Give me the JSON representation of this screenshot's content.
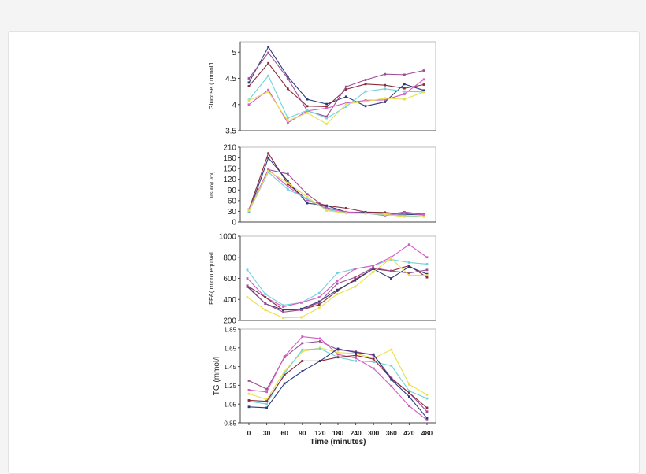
{
  "chart_data": [
    {
      "type": "line",
      "ylabel": "Glucose ( mmol/l",
      "yticks": [
        "5",
        "4.5",
        "4",
        "3.5"
      ],
      "ylim": [
        3.5,
        5.2
      ],
      "x": [
        1,
        2,
        3,
        4,
        5,
        6,
        7,
        8,
        9,
        10
      ],
      "grid": false,
      "series": [
        {
          "color": "#2b3a7a",
          "values": [
            4.42,
            5.1,
            4.53,
            4.1,
            4.01,
            4.15,
            3.97,
            4.05,
            4.39,
            4.27
          ]
        },
        {
          "color": "#8b2c3c",
          "values": [
            4.35,
            4.79,
            4.3,
            3.97,
            3.96,
            4.29,
            4.39,
            4.37,
            4.31,
            4.38
          ]
        },
        {
          "color": "#9b4f96",
          "values": [
            4.5,
            4.99,
            4.5,
            3.88,
            3.77,
            4.34,
            4.47,
            4.58,
            4.57,
            4.65
          ]
        },
        {
          "color": "#d45bc4",
          "values": [
            4.0,
            4.28,
            3.65,
            3.88,
            3.93,
            4.03,
            4.08,
            4.09,
            4.2,
            4.48
          ]
        },
        {
          "color": "#6fd3dc",
          "values": [
            4.09,
            4.55,
            3.74,
            3.89,
            3.74,
            3.96,
            4.25,
            4.3,
            4.25,
            4.24
          ]
        },
        {
          "color": "#e8e04a",
          "values": [
            4.08,
            4.24,
            3.69,
            3.84,
            3.63,
            4.01,
            4.06,
            4.12,
            4.1,
            4.24
          ]
        }
      ]
    },
    {
      "type": "line",
      "ylabel": "Insulin(U/ml)",
      "yticks": [
        "210",
        "180",
        "150",
        "120",
        "90",
        "60",
        "30",
        "0"
      ],
      "ylim": [
        0,
        210
      ],
      "x": [
        1,
        2,
        3,
        4,
        5,
        6,
        7,
        8,
        9,
        10
      ],
      "grid": false,
      "series": [
        {
          "color": "#8b2c3c",
          "values": [
            35,
            193,
            107,
            62,
            46,
            39,
            28,
            27,
            22,
            22
          ]
        },
        {
          "color": "#2b3a7a",
          "values": [
            28,
            180,
            115,
            53,
            46,
            28,
            27,
            22,
            22,
            20
          ]
        },
        {
          "color": "#9b4f96",
          "values": [
            33,
            147,
            135,
            78,
            40,
            28,
            25,
            20,
            28,
            22
          ]
        },
        {
          "color": "#d45bc4",
          "values": [
            35,
            147,
            100,
            62,
            38,
            28,
            25,
            18,
            25,
            20
          ]
        },
        {
          "color": "#6fd3dc",
          "values": [
            30,
            140,
            92,
            65,
            35,
            25,
            24,
            20,
            18,
            15
          ]
        },
        {
          "color": "#e8e04a",
          "values": [
            32,
            143,
            110,
            70,
            32,
            25,
            24,
            22,
            15,
            15
          ]
        }
      ]
    },
    {
      "type": "line",
      "ylabel": "FFA( micro equival",
      "yticks": [
        "1000",
        "800",
        "600",
        "400",
        "200"
      ],
      "ylim": [
        200,
        1000
      ],
      "x": [
        0,
        30,
        60,
        90,
        120,
        180,
        240,
        300,
        360,
        420,
        480
      ],
      "grid": false,
      "series": [
        {
          "color": "#6fd3dc",
          "values": [
            680,
            450,
            345,
            370,
            460,
            650,
            690,
            720,
            780,
            750,
            735
          ]
        },
        {
          "color": "#d45bc4",
          "values": [
            600,
            420,
            330,
            370,
            420,
            575,
            690,
            720,
            800,
            920,
            800
          ]
        },
        {
          "color": "#8b2c3c",
          "values": [
            530,
            420,
            300,
            300,
            350,
            480,
            590,
            690,
            670,
            720,
            610
          ]
        },
        {
          "color": "#2b3a7a",
          "values": [
            520,
            360,
            300,
            310,
            380,
            490,
            580,
            690,
            600,
            710,
            640
          ]
        },
        {
          "color": "#9b4f96",
          "values": [
            530,
            360,
            280,
            300,
            370,
            550,
            610,
            700,
            670,
            650,
            680
          ]
        },
        {
          "color": "#e8e04a",
          "values": [
            420,
            300,
            225,
            230,
            320,
            450,
            520,
            660,
            790,
            630,
            630
          ]
        }
      ]
    },
    {
      "type": "line",
      "ylabel": "TG (mmol/l",
      "xlabel": "Time (minutes)",
      "yticks": [
        "1.85",
        "1.65",
        "1.45",
        "1.25",
        "1.05",
        "0.85"
      ],
      "xticks": [
        "0",
        "30",
        "60",
        "90",
        "120",
        "180",
        "240",
        "300",
        "360",
        "420",
        "480"
      ],
      "ylim": [
        0.85,
        1.85
      ],
      "x": [
        0,
        30,
        60,
        90,
        120,
        180,
        240,
        300,
        360,
        420,
        480
      ],
      "grid": false,
      "series": [
        {
          "color": "#9b4f96",
          "values": [
            1.3,
            1.21,
            1.55,
            1.7,
            1.72,
            1.63,
            1.61,
            1.57,
            1.33,
            1.17,
            0.97
          ]
        },
        {
          "color": "#d45bc4",
          "values": [
            1.2,
            1.18,
            1.56,
            1.77,
            1.75,
            1.58,
            1.54,
            1.43,
            1.24,
            1.03,
            0.88
          ]
        },
        {
          "color": "#e8e04a",
          "values": [
            1.16,
            1.1,
            1.4,
            1.61,
            1.65,
            1.6,
            1.59,
            1.54,
            1.63,
            1.26,
            1.15
          ]
        },
        {
          "color": "#6fd3dc",
          "values": [
            1.08,
            1.05,
            1.38,
            1.63,
            1.64,
            1.55,
            1.51,
            1.5,
            1.46,
            1.19,
            1.11
          ]
        },
        {
          "color": "#8b2c3c",
          "values": [
            1.09,
            1.08,
            1.36,
            1.51,
            1.51,
            1.55,
            1.57,
            1.53,
            1.32,
            1.17,
            1.01
          ]
        },
        {
          "color": "#2b3a7a",
          "values": [
            1.02,
            1.01,
            1.27,
            1.4,
            1.51,
            1.64,
            1.6,
            1.58,
            1.31,
            1.13,
            0.9
          ]
        }
      ]
    }
  ]
}
